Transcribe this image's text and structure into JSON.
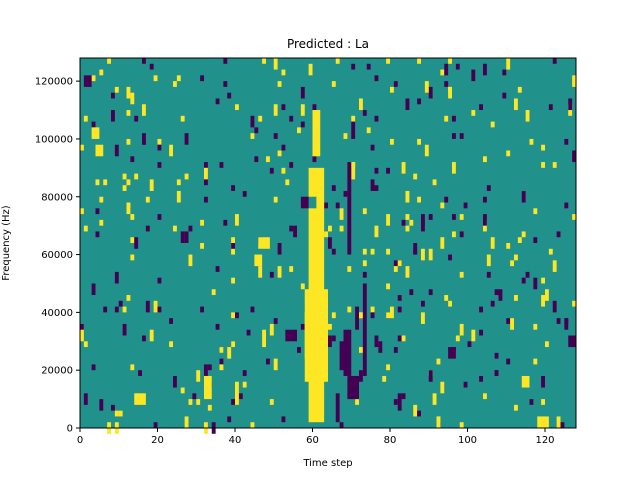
{
  "chart_data": {
    "type": "heatmap",
    "title": "Predicted : La",
    "xlabel": "Time step",
    "ylabel": "Frequency (Hz)",
    "xlim": [
      0,
      128
    ],
    "ylim": [
      0,
      128000
    ],
    "xticks": [
      0,
      20,
      40,
      60,
      80,
      100,
      120
    ],
    "yticks": [
      0,
      20000,
      40000,
      60000,
      80000,
      100000,
      120000
    ],
    "xtick_labels": [
      "0",
      "20",
      "40",
      "60",
      "80",
      "100",
      "120"
    ],
    "ytick_labels": [
      "0",
      "20000",
      "40000",
      "60000",
      "80000",
      "100000",
      "120000"
    ],
    "grid": false,
    "colormap": "viridis",
    "value_levels": [
      0,
      1,
      2
    ],
    "background_value": 1,
    "colors": {
      "low": "#440154",
      "mid": "#21918c",
      "high": "#fde725",
      "axis": "#000000"
    },
    "value_runs": [
      {
        "x": [
          59,
          63
        ],
        "y": [
          2000,
          90000
        ],
        "value": 2
      },
      {
        "x": [
          58,
          64
        ],
        "y": [
          16000,
          48000
        ],
        "value": 2
      },
      {
        "x": [
          60,
          62
        ],
        "y": [
          94000,
          110000
        ],
        "value": 2
      },
      {
        "x": [
          58,
          59
        ],
        "y": [
          24000,
          40000
        ],
        "value": 2
      },
      {
        "x": [
          58,
          61
        ],
        "y": [
          76000,
          80000
        ],
        "value": 1
      },
      {
        "x": [
          57,
          59
        ],
        "y": [
          76000,
          80000
        ],
        "value": 0
      },
      {
        "x": [
          69,
          72
        ],
        "y": [
          10000,
          18000
        ],
        "value": 0
      },
      {
        "x": [
          68,
          70
        ],
        "y": [
          18000,
          34000
        ],
        "value": 0
      },
      {
        "x": [
          69,
          70
        ],
        "y": [
          60000,
          92000
        ],
        "value": 0
      },
      {
        "x": [
          73,
          74
        ],
        "y": [
          18000,
          50000
        ],
        "value": 0
      },
      {
        "x": [
          70,
          71
        ],
        "y": [
          100000,
          106000
        ],
        "value": 0
      },
      {
        "x": [
          66,
          67
        ],
        "y": [
          2000,
          12000
        ],
        "value": 0
      },
      {
        "x": [
          67,
          68
        ],
        "y": [
          20000,
          30000
        ],
        "value": 0
      },
      {
        "x": [
          71,
          72
        ],
        "y": [
          34000,
          42000
        ],
        "value": 0
      },
      {
        "x": [
          95,
          97
        ],
        "y": [
          24000,
          28000
        ],
        "value": 0
      },
      {
        "x": [
          53,
          56
        ],
        "y": [
          30000,
          34000
        ],
        "value": 0
      },
      {
        "x": [
          1,
          3
        ],
        "y": [
          118000,
          122000
        ],
        "value": 0
      },
      {
        "x": [
          3,
          5
        ],
        "y": [
          100000,
          104000
        ],
        "value": 2
      },
      {
        "x": [
          4,
          6
        ],
        "y": [
          94000,
          98000
        ],
        "value": 2
      },
      {
        "x": [
          14,
          17
        ],
        "y": [
          8000,
          12000
        ],
        "value": 2
      },
      {
        "x": [
          32,
          34
        ],
        "y": [
          10000,
          18000
        ],
        "value": 2
      },
      {
        "x": [
          47,
          48
        ],
        "y": [
          28000,
          34000
        ],
        "value": 2
      },
      {
        "x": [
          46,
          48
        ],
        "y": [
          62000,
          66000
        ],
        "value": 2
      },
      {
        "x": [
          45,
          47
        ],
        "y": [
          56000,
          60000
        ],
        "value": 2
      },
      {
        "x": [
          40,
          41
        ],
        "y": [
          8000,
          16000
        ],
        "value": 2
      },
      {
        "x": [
          114,
          116
        ],
        "y": [
          14000,
          18000
        ],
        "value": 2
      },
      {
        "x": [
          118,
          120
        ],
        "y": [
          0,
          4000
        ],
        "value": 2
      },
      {
        "x": [
          126,
          128
        ],
        "y": [
          28000,
          32000
        ],
        "value": 0
      },
      {
        "x": [
          120,
          121
        ],
        "y": [
          0,
          4000
        ],
        "value": 2
      }
    ]
  }
}
